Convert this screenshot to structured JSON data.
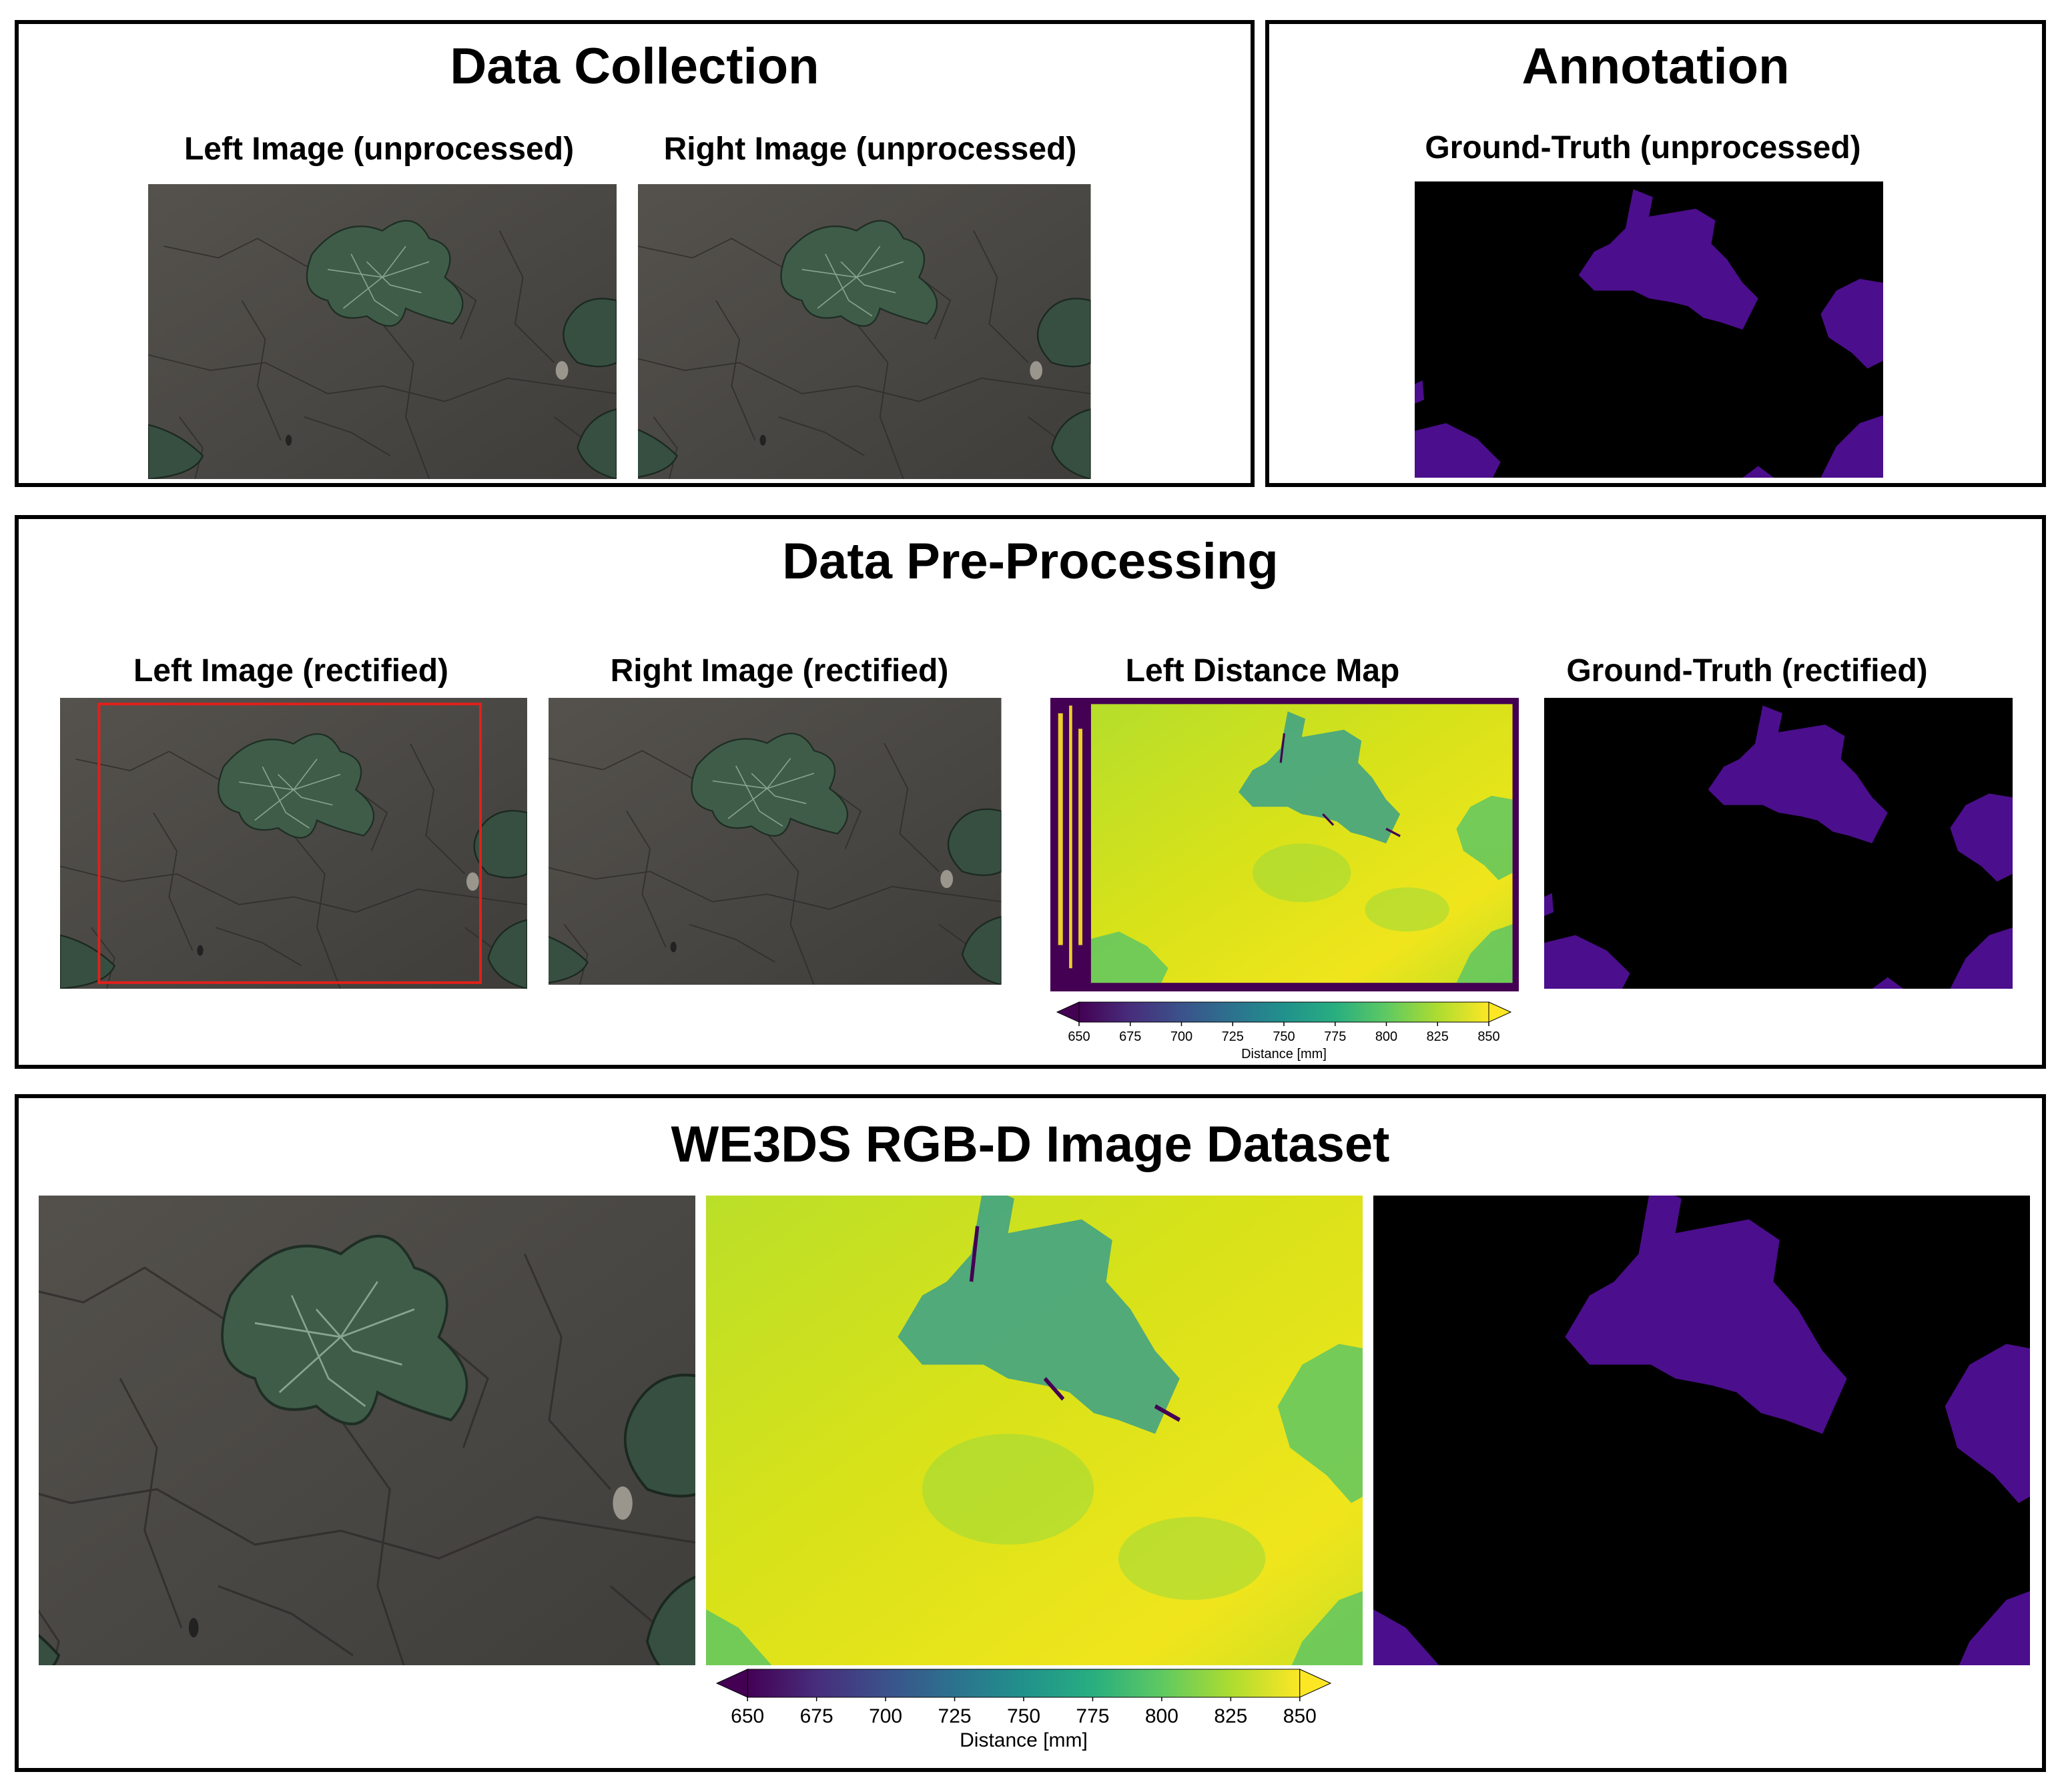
{
  "panels": {
    "data_collection": {
      "title": "Data Collection",
      "left_label": "Left Image (unprocessed)",
      "right_label": "Right Image (unprocessed)"
    },
    "annotation": {
      "title": "Annotation",
      "gt_label": "Ground-Truth (unprocessed)"
    },
    "preprocessing": {
      "title": "Data Pre-Processing",
      "left_label": "Left Image (rectified)",
      "right_label": "Right Image (rectified)",
      "distance_label": "Left Distance Map",
      "gt_label": "Ground-Truth (rectified)"
    },
    "dataset": {
      "title": "WE3DS RGB-D Image Dataset"
    }
  },
  "colorbar": {
    "ticks": [
      "650",
      "675",
      "700",
      "725",
      "750",
      "775",
      "800",
      "825",
      "850"
    ],
    "label": "Distance [mm]",
    "colormap": [
      "#440154",
      "#472d7b",
      "#3b528b",
      "#2c728e",
      "#21918c",
      "#28ae80",
      "#5ec962",
      "#addc30",
      "#fde725"
    ]
  },
  "colors": {
    "soil": "#4a4844",
    "plant": "#3e5a47",
    "mask_plant": "#4b0e8c",
    "mask_bg": "#000000",
    "crop_box": "#e0201b"
  }
}
